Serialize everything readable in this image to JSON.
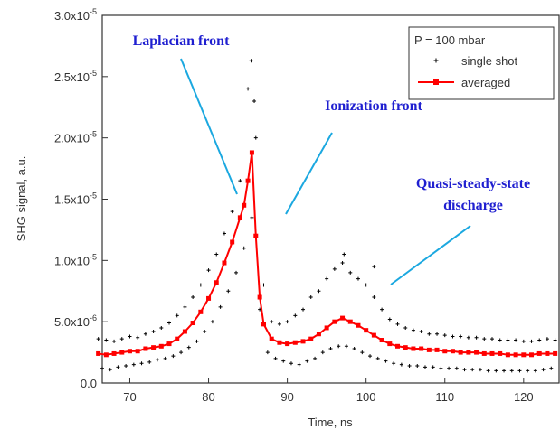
{
  "chart_data": {
    "type": "scatter",
    "xlabel": "Time, ns",
    "ylabel": "SHG signal, a.u.",
    "xlim": [
      66.5,
      124.5
    ],
    "xticks": [
      70,
      80,
      90,
      100,
      110,
      120
    ],
    "ylim": [
      0,
      3e-05
    ],
    "yticks": [
      {
        "value": 0,
        "label": "0.0"
      },
      {
        "value": 5e-06,
        "label": "5.0x10",
        "exponent": "-6"
      },
      {
        "value": 1e-05,
        "label": "1.0x10",
        "exponent": "-5"
      },
      {
        "value": 1.5e-05,
        "label": "1.5x10",
        "exponent": "-5"
      },
      {
        "value": 2e-05,
        "label": "2.0x10",
        "exponent": "-5"
      },
      {
        "value": 2.5e-05,
        "label": "2.5x10",
        "exponent": "-5"
      },
      {
        "value": 3e-05,
        "label": "3.0x10",
        "exponent": "-5"
      }
    ],
    "legend_title": "P = 100 mbar",
    "legend": "upper right",
    "annotations": [
      {
        "text": "Laplacian front"
      },
      {
        "text": "Ionization front"
      },
      {
        "text": "Quasi-steady-state"
      },
      {
        "text": "discharge"
      }
    ],
    "series": [
      {
        "name": "single shot",
        "color": "#000000",
        "type": "scatter",
        "x": [
          66,
          66.5,
          67,
          67.5,
          68,
          68.5,
          69,
          69.5,
          70,
          70.5,
          71,
          71.5,
          72,
          72.5,
          73,
          73.5,
          74,
          74.5,
          75,
          75.5,
          76,
          76.5,
          77,
          77.5,
          78,
          78.5,
          79,
          79.5,
          80,
          80.5,
          81,
          81.5,
          82,
          82.5,
          83,
          83.5,
          84,
          84.5,
          85,
          85.5,
          86,
          86.5,
          87,
          87.5,
          88,
          88.5,
          89,
          89.5,
          90,
          90.5,
          91,
          91.5,
          92,
          92.5,
          93,
          93.5,
          94,
          94.5,
          95,
          95.5,
          96,
          96.5,
          97,
          97.5,
          98,
          98.5,
          99,
          99.5,
          100,
          100.5,
          101,
          101.5,
          102,
          102.5,
          103,
          103.5,
          104,
          104.5,
          105,
          105.5,
          106,
          106.5,
          107,
          107.5,
          108,
          108.5,
          109,
          109.5,
          110,
          110.5,
          111,
          111.5,
          112,
          112.5,
          113,
          113.5,
          114,
          114.5,
          115,
          115.5,
          116,
          116.5,
          117,
          117.5,
          118,
          118.5,
          119,
          119.5,
          120,
          120.5,
          121,
          121.5,
          122,
          122.5,
          123,
          123.5,
          124,
          85.4,
          85.8,
          97.2,
          101
        ],
        "values": [
          3.6e-06,
          1.2e-06,
          3.5e-06,
          1.1e-06,
          3.4e-06,
          1.3e-06,
          3.6e-06,
          1.4e-06,
          3.8e-06,
          1.5e-06,
          3.7e-06,
          1.6e-06,
          4e-06,
          1.7e-06,
          4.2e-06,
          1.9e-06,
          4.5e-06,
          2e-06,
          4.9e-06,
          2.2e-06,
          5.5e-06,
          2.5e-06,
          6.2e-06,
          2.9e-06,
          7e-06,
          3.4e-06,
          8e-06,
          4.2e-06,
          9.2e-06,
          5e-06,
          1.05e-05,
          6.2e-06,
          1.22e-05,
          7.5e-06,
          1.4e-05,
          9e-06,
          1.65e-05,
          1.1e-05,
          2.4e-05,
          1.35e-05,
          2e-05,
          6e-06,
          8e-06,
          2.5e-06,
          5e-06,
          2e-06,
          4.8e-06,
          1.8e-06,
          5e-06,
          1.6e-06,
          5.5e-06,
          1.5e-06,
          6e-06,
          1.8e-06,
          7e-06,
          2e-06,
          7.5e-06,
          2.5e-06,
          8.5e-06,
          2.8e-06,
          9.3e-06,
          3e-06,
          9.8e-06,
          3e-06,
          9e-06,
          2.8e-06,
          8.5e-06,
          2.5e-06,
          8e-06,
          2.2e-06,
          7e-06,
          2e-06,
          6e-06,
          1.8e-06,
          5.2e-06,
          1.6e-06,
          4.8e-06,
          1.5e-06,
          4.5e-06,
          1.4e-06,
          4.3e-06,
          1.4e-06,
          4.2e-06,
          1.3e-06,
          4e-06,
          1.3e-06,
          4e-06,
          1.2e-06,
          3.9e-06,
          1.2e-06,
          3.8e-06,
          1.2e-06,
          3.8e-06,
          1.1e-06,
          3.7e-06,
          1.1e-06,
          3.7e-06,
          1.1e-06,
          3.6e-06,
          1e-06,
          3.6e-06,
          1e-06,
          3.5e-06,
          1e-06,
          3.5e-06,
          1e-06,
          3.5e-06,
          1e-06,
          3.4e-06,
          1e-06,
          3.4e-06,
          1e-06,
          3.5e-06,
          1.1e-06,
          3.6e-06,
          1.2e-06,
          3.5e-06,
          2.63e-05,
          2.3e-05,
          1.05e-05,
          9.5e-06
        ]
      },
      {
        "name": "averaged",
        "color": "#ff0000",
        "type": "line",
        "x": [
          66,
          67,
          68,
          69,
          70,
          71,
          72,
          73,
          74,
          75,
          76,
          77,
          78,
          79,
          80,
          81,
          82,
          83,
          84,
          84.5,
          85,
          85.5,
          86,
          86.5,
          87,
          88,
          89,
          90,
          91,
          92,
          93,
          94,
          95,
          96,
          97,
          98,
          99,
          100,
          101,
          102,
          103,
          104,
          105,
          106,
          107,
          108,
          109,
          110,
          111,
          112,
          113,
          114,
          115,
          116,
          117,
          118,
          119,
          120,
          121,
          122,
          123,
          124
        ],
        "values": [
          2.4e-06,
          2.3e-06,
          2.4e-06,
          2.5e-06,
          2.6e-06,
          2.6e-06,
          2.8e-06,
          2.9e-06,
          3e-06,
          3.2e-06,
          3.6e-06,
          4.2e-06,
          4.9e-06,
          5.8e-06,
          6.9e-06,
          8.2e-06,
          9.8e-06,
          1.15e-05,
          1.35e-05,
          1.45e-05,
          1.65e-05,
          1.88e-05,
          1.2e-05,
          7e-06,
          4.8e-06,
          3.6e-06,
          3.3e-06,
          3.2e-06,
          3.3e-06,
          3.4e-06,
          3.6e-06,
          4e-06,
          4.5e-06,
          5e-06,
          5.3e-06,
          5e-06,
          4.7e-06,
          4.3e-06,
          3.9e-06,
          3.5e-06,
          3.2e-06,
          3e-06,
          2.9e-06,
          2.8e-06,
          2.8e-06,
          2.7e-06,
          2.7e-06,
          2.6e-06,
          2.6e-06,
          2.5e-06,
          2.5e-06,
          2.5e-06,
          2.4e-06,
          2.4e-06,
          2.4e-06,
          2.3e-06,
          2.3e-06,
          2.3e-06,
          2.3e-06,
          2.4e-06,
          2.4e-06,
          2.4e-06
        ]
      }
    ]
  }
}
